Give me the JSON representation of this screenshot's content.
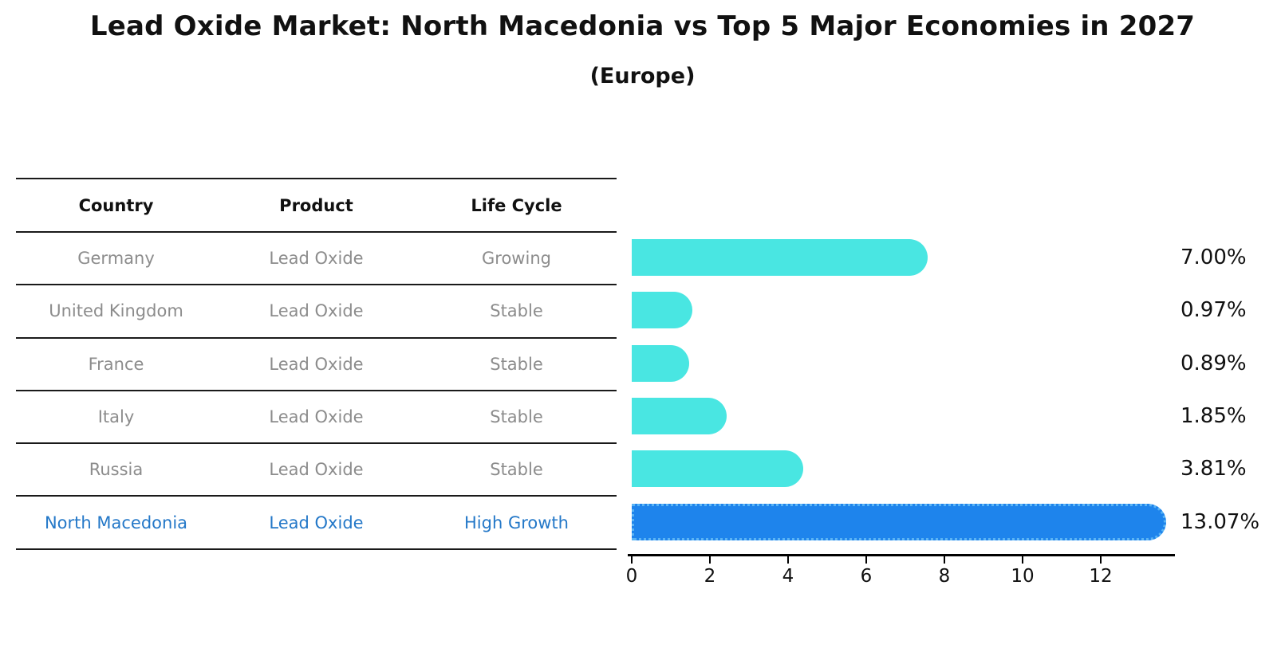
{
  "title": "Lead Oxide Market: North Macedonia vs Top 5 Major Economies in 2027",
  "subtitle": "(Europe)",
  "table": {
    "headers": [
      "Country",
      "Product",
      "Life Cycle"
    ],
    "rows": [
      {
        "country": "Germany",
        "product": "Lead Oxide",
        "life_cycle": "Growing",
        "highlight": false
      },
      {
        "country": "United Kingdom",
        "product": "Lead Oxide",
        "life_cycle": "Stable",
        "highlight": false
      },
      {
        "country": "France",
        "product": "Lead Oxide",
        "life_cycle": "Stable",
        "highlight": false
      },
      {
        "country": "Italy",
        "product": "Lead Oxide",
        "life_cycle": "Stable",
        "highlight": false
      },
      {
        "country": "Russia",
        "product": "Lead Oxide",
        "life_cycle": "Stable",
        "highlight": false
      },
      {
        "country": "North Macedonia",
        "product": "Lead Oxide",
        "life_cycle": "High Growth",
        "highlight": true
      }
    ]
  },
  "chart_data": {
    "type": "bar",
    "orientation": "horizontal",
    "title": "Lead Oxide Market: North Macedonia vs Top 5 Major Economies in 2027",
    "subtitle": "(Europe)",
    "categories": [
      "Germany",
      "United Kingdom",
      "France",
      "Italy",
      "Russia",
      "North Macedonia"
    ],
    "values": [
      7.0,
      0.97,
      0.89,
      1.85,
      3.81,
      13.07
    ],
    "value_labels": [
      "7.00%",
      "0.97%",
      "0.89%",
      "1.85%",
      "3.81%",
      "13.07%"
    ],
    "highlight_index": 5,
    "x_ticks": [
      0,
      2,
      4,
      6,
      8,
      10,
      12
    ],
    "xlim": [
      0,
      13.9
    ],
    "grid": false,
    "legend": false
  },
  "colors": {
    "bar": "#49E6E2",
    "highlight_bar": "#1E84EC",
    "highlight_border": "#5AB4F5",
    "table_text": "#8c8c8c",
    "highlight_text": "#2478C8",
    "axis": "#000000",
    "text": "#111111"
  }
}
